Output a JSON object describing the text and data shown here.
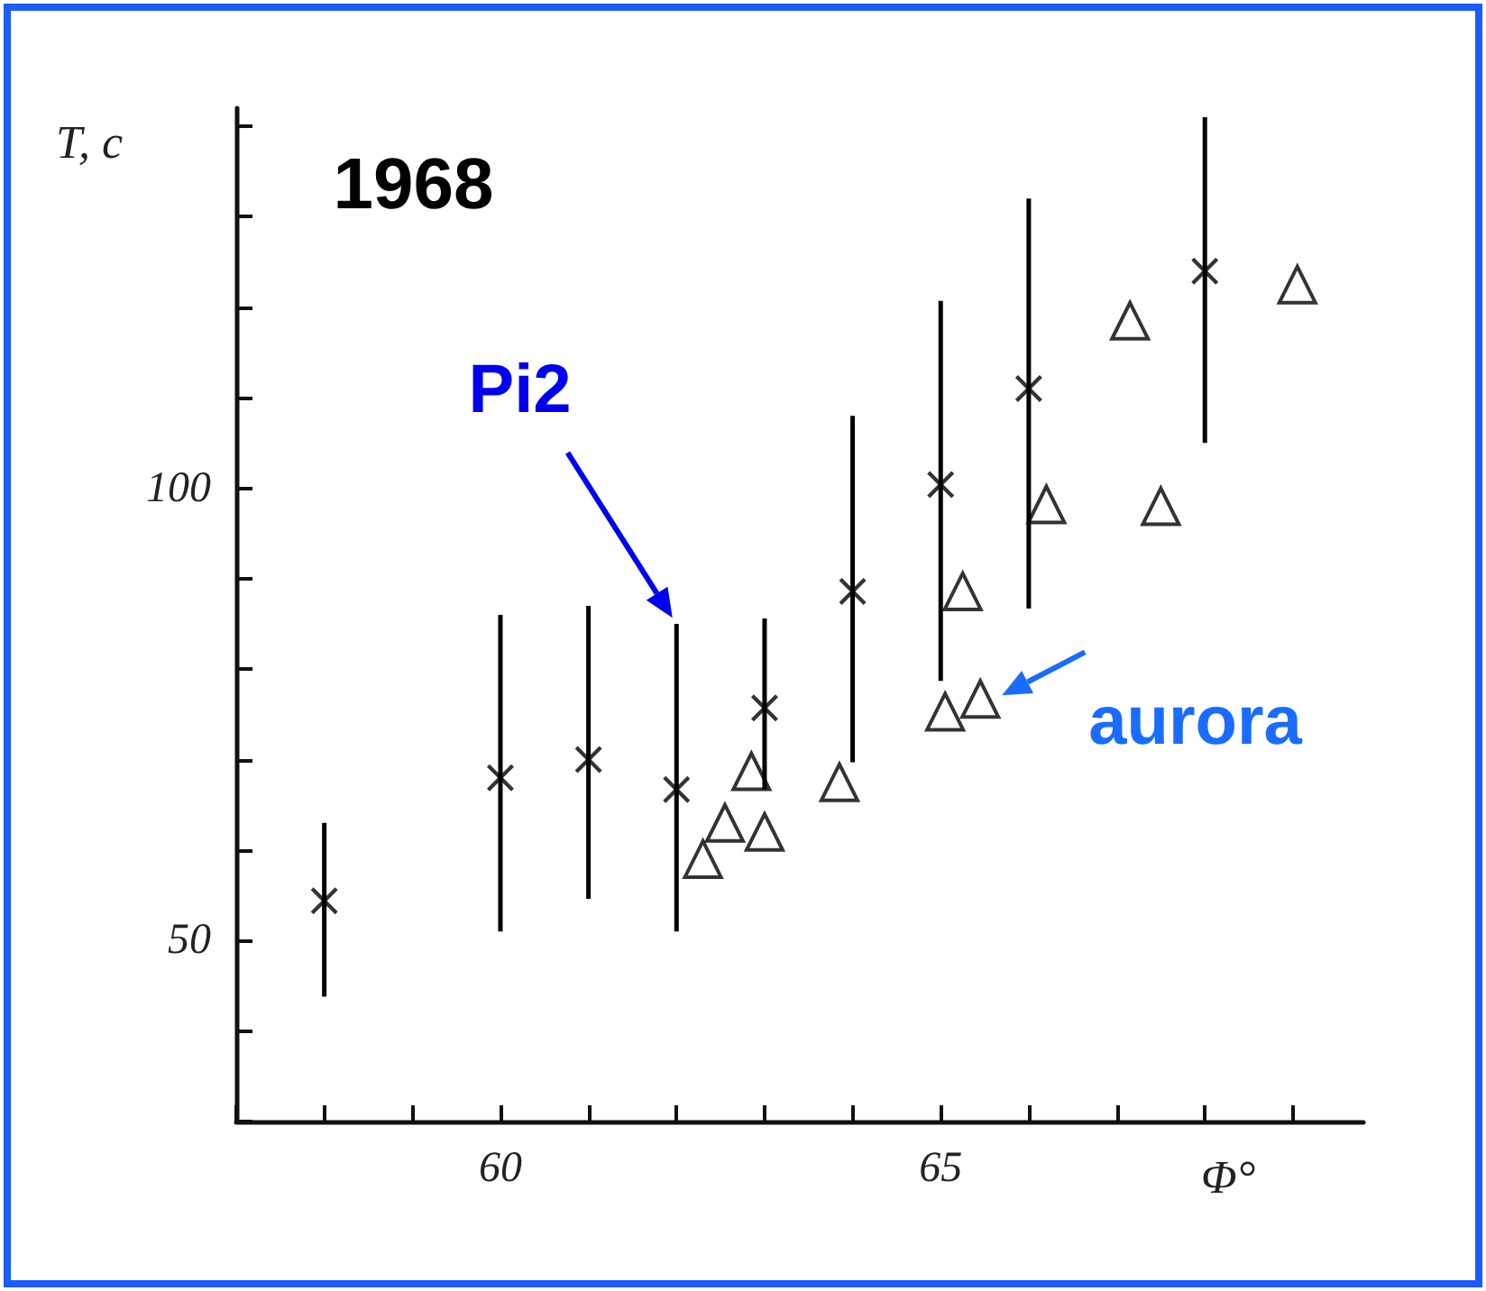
{
  "chart_data": {
    "type": "scatter",
    "xlabel": "Φ°",
    "ylabel": "T, c",
    "annotations": [
      "1968",
      "Pi2",
      {
        "text": "aurora",
        "x": 65.45,
        "y": 76.7
      }
    ],
    "xlim": [
      57,
      69.8
    ],
    "ylim": [
      30,
      142
    ],
    "xticks": [
      {
        "value": 57,
        "label": null
      },
      {
        "value": 58,
        "label": null
      },
      {
        "value": 59,
        "label": null
      },
      60,
      {
        "value": 61,
        "label": null
      },
      {
        "value": 62,
        "label": null
      },
      {
        "value": 63,
        "label": null
      },
      {
        "value": 64,
        "label": null
      },
      65,
      {
        "value": 66,
        "label": null
      },
      {
        "value": 67,
        "label": null
      },
      {
        "value": 68,
        "label": null
      },
      {
        "value": 69,
        "label": null
      }
    ],
    "yticks": [
      {
        "value": 30,
        "label": null
      },
      {
        "value": 40,
        "label": null
      },
      50,
      {
        "value": 60,
        "label": null
      },
      {
        "value": 70,
        "label": null
      },
      {
        "value": 80,
        "label": null
      },
      {
        "value": 90,
        "label": null
      },
      100,
      {
        "value": 110,
        "label": null
      },
      {
        "value": 120,
        "label": null
      },
      {
        "value": 130,
        "label": null
      },
      {
        "value": 140,
        "label": null
      }
    ],
    "grid": false,
    "series": [
      {
        "marker": "cross",
        "color": "#000000",
        "x": [
          58,
          60,
          61,
          62,
          63,
          64,
          65,
          66,
          68
        ],
        "values": [
          54.4,
          68,
          70,
          66.7,
          75.7,
          88.6,
          100.4,
          111,
          124
        ],
        "errors": [
          [
            43.8,
            63
          ],
          [
            51,
            86
          ],
          [
            54.6,
            87
          ],
          [
            51,
            85
          ],
          [
            66.7,
            85.6
          ],
          [
            69.7,
            108
          ],
          [
            78.7,
            120.7
          ],
          [
            86.7,
            132
          ],
          [
            105,
            141
          ]
        ]
      },
      {
        "marker": "triangle",
        "color": "#000000",
        "x": [
          62.3,
          62.55,
          62.85,
          63,
          63.85,
          65.05,
          65.45,
          65.25,
          66.2,
          67.5,
          67.15,
          69.05
        ],
        "values": [
          59,
          63,
          68.7,
          62,
          67.5,
          75.3,
          76.7,
          88.6,
          98.2,
          98,
          118.5,
          122.5
        ]
      }
    ]
  }
}
